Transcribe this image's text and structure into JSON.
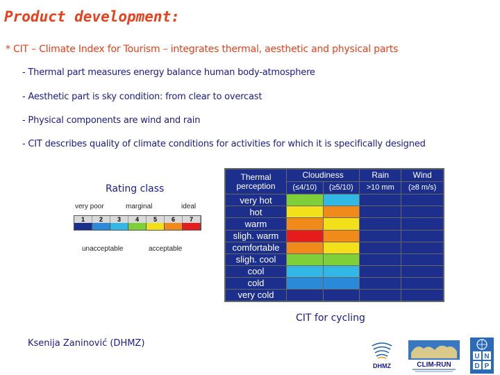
{
  "title": "Product development:",
  "main_bullet": "* CIT – Climate Index for Tourism – integrates thermal, aesthetic and physical parts",
  "sub_bullets": [
    "- Thermal part measures energy balance human body-atmosphere",
    "- Aesthetic part is sky condition: from clear to overcast",
    "- Physical components are wind and rain",
    "- CIT describes quality of climate conditions for activities for which it is specifically designed"
  ],
  "rating": {
    "title": "Rating class",
    "labels": {
      "very_poor": "very poor",
      "marginal": "marginal",
      "ideal": "ideal",
      "unacceptable": "unacceptable",
      "acceptable": "acceptable"
    },
    "classes": [
      "1",
      "2",
      "3",
      "4",
      "5",
      "6",
      "7"
    ],
    "class_colors": [
      "#1c2f8c",
      "#2a8ad8",
      "#33b8e6",
      "#7fcf3a",
      "#f2e01a",
      "#f08a1a",
      "#e61c1c"
    ]
  },
  "cit_table": {
    "headers": {
      "thermal": "Thermal perception",
      "cloudiness": "Cloudiness",
      "cloud_low": "(≤4/10)",
      "cloud_high": "(≥5/10)",
      "rain": "Rain",
      "rain_sub": ">10 mm",
      "wind": "Wind",
      "wind_sub": "(≥8 m/s)"
    },
    "rows": [
      {
        "label": "very hot",
        "colors": [
          "#7fcf3a",
          "#33b8e6",
          "#1c2f8c",
          "#1c2f8c"
        ]
      },
      {
        "label": "hot",
        "colors": [
          "#f2e01a",
          "#f08a1a",
          "#1c2f8c",
          "#1c2f8c"
        ]
      },
      {
        "label": "warm",
        "colors": [
          "#f08a1a",
          "#f2e01a",
          "#1c2f8c",
          "#1c2f8c"
        ]
      },
      {
        "label": "sligh. warm",
        "colors": [
          "#e61c1c",
          "#f08a1a",
          "#1c2f8c",
          "#1c2f8c"
        ]
      },
      {
        "label": "comfortable",
        "colors": [
          "#f08a1a",
          "#f2e01a",
          "#1c2f8c",
          "#1c2f8c"
        ]
      },
      {
        "label": "sligh. cool",
        "colors": [
          "#7fcf3a",
          "#7fcf3a",
          "#1c2f8c",
          "#1c2f8c"
        ]
      },
      {
        "label": "cool",
        "colors": [
          "#33b8e6",
          "#33b8e6",
          "#1c2f8c",
          "#1c2f8c"
        ]
      },
      {
        "label": "cold",
        "colors": [
          "#2a8ad8",
          "#2a8ad8",
          "#1c2f8c",
          "#1c2f8c"
        ]
      },
      {
        "label": "very cold",
        "colors": [
          "#1c2f8c",
          "#1c2f8c",
          "#1c2f8c",
          "#1c2f8c"
        ]
      }
    ]
  },
  "caption": "CIT for cycling",
  "author": "Ksenija Zaninović (DHMZ)",
  "logos": {
    "dhmz": "DHMZ",
    "climrun": "CLIM-RUN",
    "undp_letters": [
      "U",
      "N",
      "D",
      "P"
    ]
  },
  "colors": {
    "title": "#e8401c",
    "text": "#1a1a8a",
    "table_blue": "#1c2f8c"
  }
}
